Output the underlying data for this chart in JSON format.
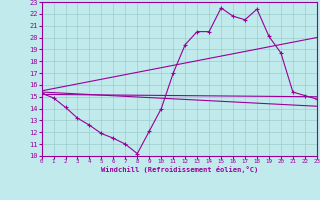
{
  "xlabel": "Windchill (Refroidissement éolien,°C)",
  "xlim": [
    0,
    23
  ],
  "ylim": [
    10,
    23
  ],
  "xticks": [
    0,
    1,
    2,
    3,
    4,
    5,
    6,
    7,
    8,
    9,
    10,
    11,
    12,
    13,
    14,
    15,
    16,
    17,
    18,
    19,
    20,
    21,
    22,
    23
  ],
  "yticks": [
    10,
    11,
    12,
    13,
    14,
    15,
    16,
    17,
    18,
    19,
    20,
    21,
    22,
    23
  ],
  "background_color": "#c0eaec",
  "line_color": "#990099",
  "grid_color": "#9ecece",
  "line1_x": [
    0,
    1,
    2,
    3,
    4,
    5,
    6,
    7,
    8,
    9,
    10,
    11,
    12,
    13,
    14,
    15,
    16,
    17,
    18,
    19,
    20,
    21,
    22,
    23
  ],
  "line1_y": [
    15.3,
    14.9,
    14.1,
    13.2,
    12.6,
    11.9,
    11.5,
    11.0,
    10.2,
    12.1,
    14.0,
    17.0,
    19.4,
    20.5,
    20.5,
    22.5,
    21.8,
    21.5,
    22.4,
    20.1,
    18.7,
    15.4,
    15.1,
    14.8
  ],
  "line2_x": [
    0,
    23
  ],
  "line2_y": [
    15.2,
    15.0
  ],
  "line3_x": [
    0,
    23
  ],
  "line3_y": [
    15.5,
    20.0
  ],
  "line4_x": [
    0,
    23
  ],
  "line4_y": [
    15.4,
    14.2
  ]
}
